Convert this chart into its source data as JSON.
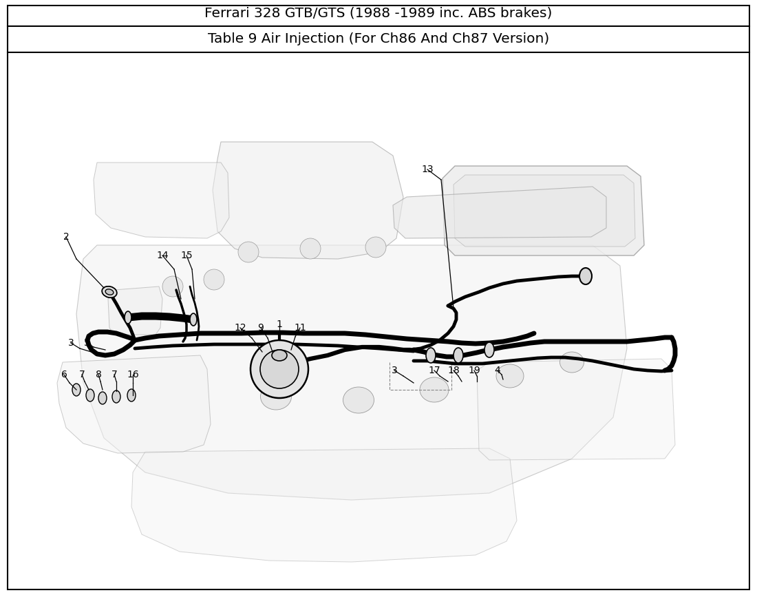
{
  "title_line1": "Ferrari 328 GTB/GTS (1988 -1989 inc. ABS brakes)",
  "title_line2": "Table 9 Air Injection (For Ch86 And Ch87 Version)",
  "border_color": "#000000",
  "background_color": "#ffffff",
  "title_fontsize": 14.5,
  "subtitle_fontsize": 14.5,
  "fig_width": 11.0,
  "fig_height": 8.64,
  "engine_color": "#888888",
  "tube_color": "#000000",
  "label_color": "#000000",
  "label_fontsize": 10
}
